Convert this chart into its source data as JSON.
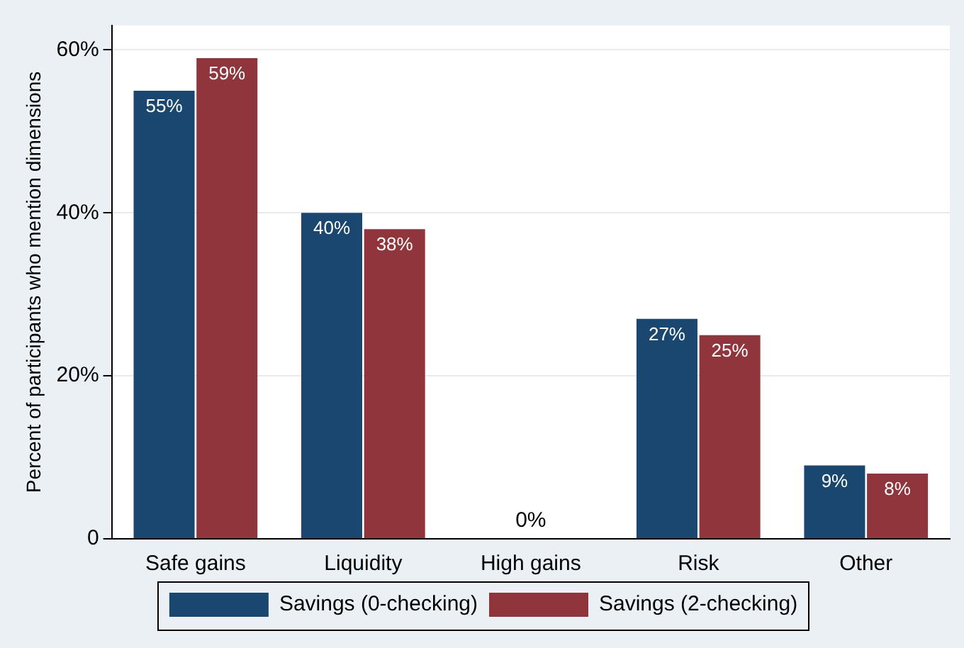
{
  "chart_data": {
    "type": "bar",
    "ylabel": "Percent of participants who mention dimensions",
    "categories": [
      "Safe gains",
      "Liquidity",
      "High gains",
      "Risk",
      "Other"
    ],
    "series": [
      {
        "name": "Savings (0-checking)",
        "color": "#1a476f",
        "values": [
          55,
          40,
          0,
          27,
          9
        ],
        "value_labels": [
          "55%",
          "40%",
          null,
          "27%",
          "9%"
        ]
      },
      {
        "name": "Savings (2-checking)",
        "color": "#90353b",
        "values": [
          59,
          38,
          0,
          25,
          8
        ],
        "value_labels": [
          "59%",
          "38%",
          null,
          "25%",
          "8%"
        ]
      }
    ],
    "ylim": [
      0,
      63
    ],
    "yticks": [
      {
        "value": 0,
        "label": "0"
      },
      {
        "value": 20,
        "label": "20%"
      },
      {
        "value": 40,
        "label": "40%"
      },
      {
        "value": 60,
        "label": "60%"
      }
    ],
    "grid": "y",
    "legend": "bottom",
    "annotations": [
      {
        "text": "0%",
        "x": "High gains",
        "y": 0
      }
    ]
  }
}
